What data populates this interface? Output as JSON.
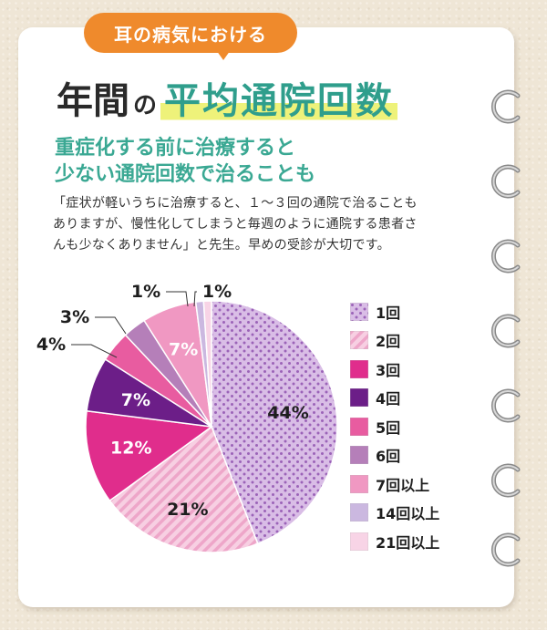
{
  "header": {
    "tag": "耳の病気における",
    "title_part1": "年間",
    "title_particle": "の",
    "title_part2": "平均通院回数"
  },
  "subheading": [
    "重症化する前に治療すると",
    "少ない通院回数で治ることも"
  ],
  "body_lines": [
    "「症状が軽いうちに治療すると、１～３回の通院で治ることも",
    "ありますが、慢性化してしまうと毎週のように通院する患者さ",
    "んも少なくありません」と先生。早めの受診が大切です。"
  ],
  "chart_data": {
    "type": "pie",
    "title": "",
    "slices": [
      {
        "label": "1回",
        "value": 44,
        "display": "44%",
        "color": "#c9a7db",
        "pattern": "dots"
      },
      {
        "label": "2回",
        "value": 21,
        "display": "21%",
        "color": "#f3b9d3",
        "pattern": "stripes"
      },
      {
        "label": "3回",
        "value": 12,
        "display": "12%",
        "color": "#e02d8c",
        "pattern": "solid"
      },
      {
        "label": "4回",
        "value": 7,
        "display": "7%",
        "color": "#6c1e88",
        "pattern": "solid"
      },
      {
        "label": "5回",
        "value": 4,
        "display": "4%",
        "color": "#e85ca0",
        "pattern": "solid"
      },
      {
        "label": "6回",
        "value": 3,
        "display": "3%",
        "color": "#b57fb9",
        "pattern": "solid"
      },
      {
        "label": "7回以上",
        "value": 7,
        "display": "7%",
        "color": "#f098c2",
        "pattern": "solid"
      },
      {
        "label": "14回以上",
        "value": 1,
        "display": "1%",
        "color": "#cbb8e0",
        "pattern": "solid"
      },
      {
        "label": "21回以上",
        "value": 1,
        "display": "1%",
        "color": "#f8d4e6",
        "pattern": "solid"
      }
    ],
    "legend_position": "right"
  }
}
